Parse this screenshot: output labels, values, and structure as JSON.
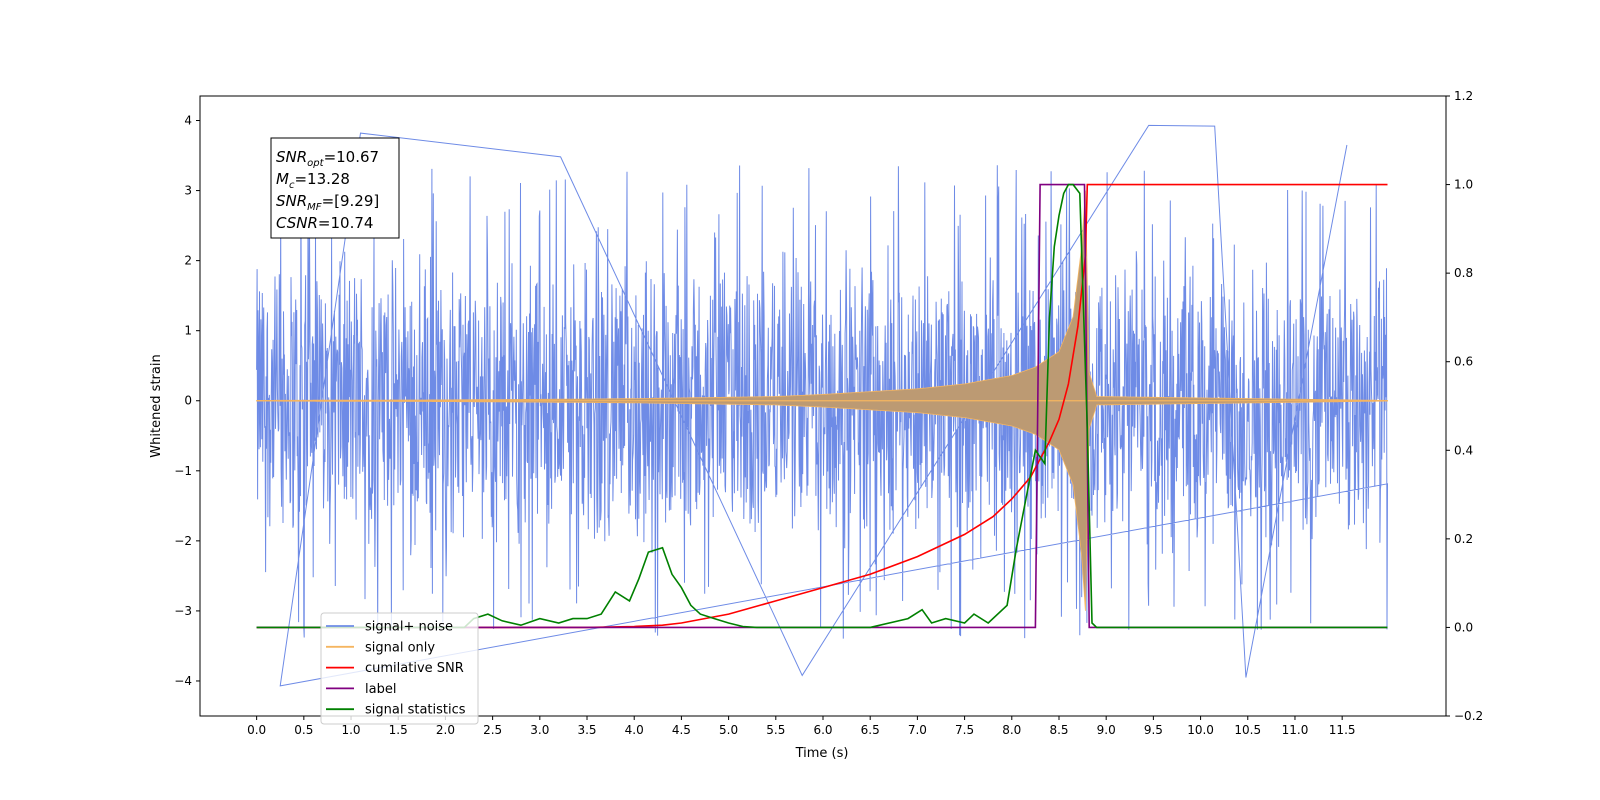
{
  "chart_data": {
    "type": "line",
    "xlabel": "Time (s)",
    "ylabel": "Whitened strain",
    "xlim": [
      -0.6,
      12.6
    ],
    "ylim_left": [
      -4.5,
      4.35
    ],
    "ylim_right": [
      -0.2,
      1.2
    ],
    "x_ticks": [
      "0.0",
      "0.5",
      "1.0",
      "1.5",
      "2.0",
      "2.5",
      "3.0",
      "3.5",
      "4.0",
      "4.5",
      "5.0",
      "5.5",
      "6.0",
      "6.5",
      "7.0",
      "7.5",
      "8.0",
      "8.5",
      "9.0",
      "9.5",
      "10.0",
      "10.5",
      "11.0",
      "11.5"
    ],
    "y_ticks_left": [
      "4",
      "3",
      "2",
      "1",
      "0",
      "−1",
      "−2",
      "−3",
      "−4"
    ],
    "y_ticks_right": [
      "1.2",
      "1.0",
      "0.8",
      "0.6",
      "0.4",
      "0.2",
      "0.0",
      "−0.2"
    ],
    "annotation": {
      "lines": [
        {
          "main": "SNR",
          "sub": "opt",
          "value": "=10.67"
        },
        {
          "main": "M",
          "sub": "c",
          "value": "=13.28"
        },
        {
          "main": "SNR",
          "sub": "MF",
          "value": "=[9.29]"
        },
        {
          "main": "CSNR",
          "sub": "",
          "value": "=10.74"
        }
      ]
    },
    "legend": {
      "location": "lower-left",
      "entries": [
        {
          "label": "signal+ noise",
          "color": "#6e8be6"
        },
        {
          "label": "signal only",
          "color": "#f5b560"
        },
        {
          "label": "cumilative SNR",
          "color": "#ff0000"
        },
        {
          "label": "label",
          "color": "#800080"
        },
        {
          "label": "signal statistics",
          "color": "#008000"
        }
      ]
    },
    "series": [
      {
        "name": "signal+ noise",
        "axis": "left",
        "kind": "noise",
        "color": "#6e8be6",
        "x_range": [
          0,
          11.98
        ],
        "typical_envelope": [
          -2.3,
          2.3
        ],
        "extremes": [
          [
            0.25,
            -4.07
          ],
          [
            1.1,
            3.82
          ],
          [
            3.22,
            3.48
          ],
          [
            5.78,
            -3.92
          ],
          [
            9.45,
            3.93
          ],
          [
            10.15,
            3.92
          ],
          [
            10.48,
            -3.95
          ],
          [
            11.55,
            3.65
          ]
        ]
      },
      {
        "name": "signal only",
        "axis": "left",
        "kind": "chirp",
        "color": "#f5b560",
        "fill_color": "#bc9a73",
        "x": [
          0,
          2,
          3,
          4,
          5,
          5.5,
          6,
          6.5,
          7,
          7.5,
          8,
          8.25,
          8.5,
          8.65,
          8.74,
          8.78,
          8.82,
          8.9,
          11.98
        ],
        "amplitude": [
          0.005,
          0.012,
          0.02,
          0.03,
          0.05,
          0.06,
          0.09,
          0.13,
          0.17,
          0.24,
          0.36,
          0.48,
          0.7,
          1.2,
          2.2,
          3.0,
          0.4,
          0.06,
          0.005
        ]
      },
      {
        "name": "cumilative SNR",
        "axis": "right",
        "color": "#ff0000",
        "x": [
          0,
          3.5,
          4.0,
          4.3,
          4.5,
          5.0,
          5.5,
          6.0,
          6.5,
          7.0,
          7.5,
          7.8,
          8.0,
          8.2,
          8.4,
          8.5,
          8.6,
          8.7,
          8.75,
          8.78,
          8.8,
          9.0,
          11.98
        ],
        "values": [
          0.0,
          0.0,
          0.002,
          0.005,
          0.01,
          0.03,
          0.06,
          0.09,
          0.12,
          0.16,
          0.21,
          0.25,
          0.29,
          0.34,
          0.42,
          0.47,
          0.55,
          0.68,
          0.78,
          0.84,
          1.0,
          1.0,
          1.0
        ]
      },
      {
        "name": "label",
        "axis": "right",
        "color": "#800080",
        "x": [
          0,
          8.25,
          8.3,
          8.77,
          8.82,
          11.98
        ],
        "values": [
          0.0,
          0.0,
          1.0,
          1.0,
          0.0,
          0.0
        ]
      },
      {
        "name": "signal statistics",
        "axis": "right",
        "color": "#008000",
        "x": [
          0,
          2.2,
          2.3,
          2.45,
          2.6,
          2.8,
          3.0,
          3.2,
          3.35,
          3.5,
          3.65,
          3.8,
          3.95,
          4.05,
          4.15,
          4.3,
          4.4,
          4.5,
          4.6,
          4.7,
          4.85,
          5.0,
          5.15,
          5.3,
          5.5,
          5.7,
          6.0,
          6.5,
          6.9,
          7.05,
          7.15,
          7.3,
          7.5,
          7.6,
          7.75,
          7.95,
          8.05,
          8.15,
          8.25,
          8.35,
          8.4,
          8.45,
          8.5,
          8.55,
          8.6,
          8.65,
          8.72,
          8.8,
          8.85,
          8.9,
          11.98
        ],
        "values": [
          0.0,
          0.0,
          0.02,
          0.03,
          0.015,
          0.005,
          0.02,
          0.01,
          0.02,
          0.02,
          0.03,
          0.08,
          0.06,
          0.11,
          0.17,
          0.18,
          0.12,
          0.09,
          0.05,
          0.03,
          0.02,
          0.01,
          0.002,
          0.0,
          0.0,
          0.0,
          0.0,
          0.0,
          0.02,
          0.04,
          0.01,
          0.02,
          0.01,
          0.03,
          0.01,
          0.05,
          0.18,
          0.29,
          0.4,
          0.37,
          0.7,
          0.86,
          0.93,
          0.98,
          1.0,
          1.0,
          0.98,
          0.45,
          0.01,
          0.0,
          0.0
        ]
      }
    ]
  }
}
